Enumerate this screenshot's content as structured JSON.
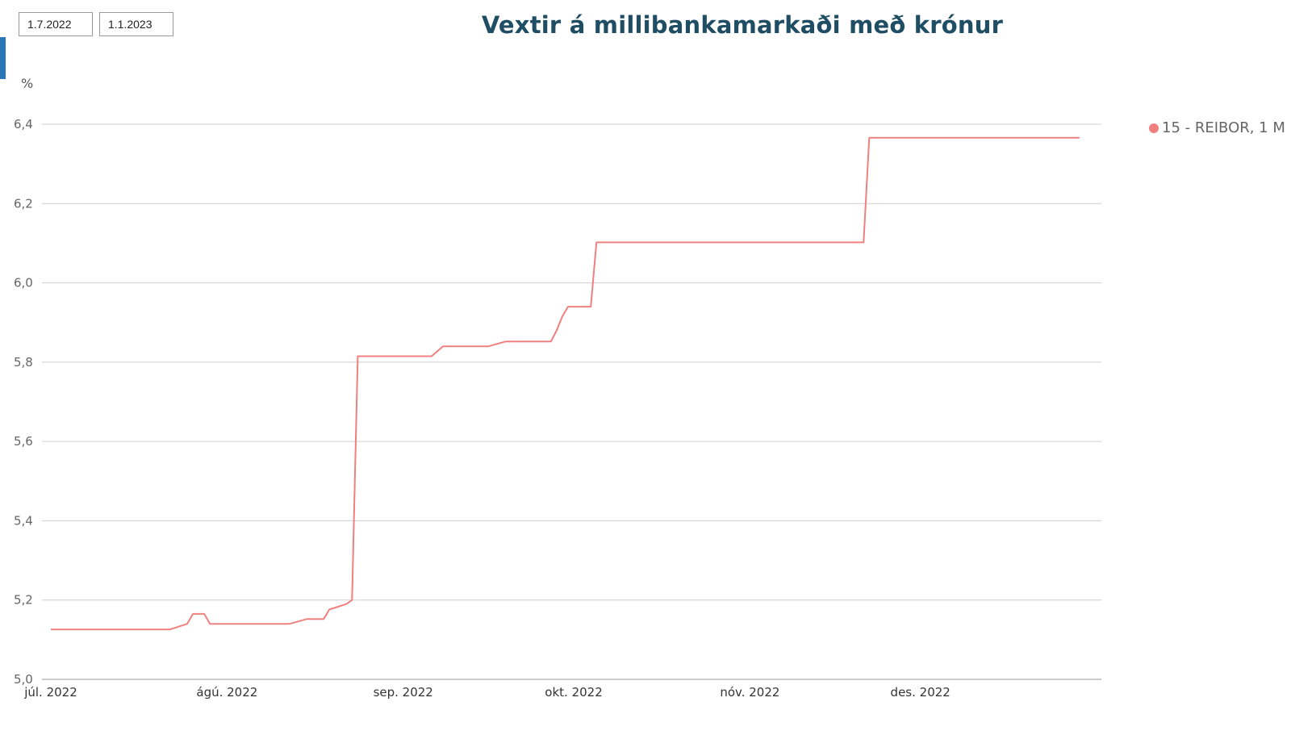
{
  "filters": {
    "date_from": "1.7.2022",
    "date_to": "1.1.2023"
  },
  "colors": {
    "series": "#f08080",
    "title": "#1f4d63",
    "accent_tab": "#2a77b8",
    "grid": "#cfcfcf"
  },
  "chart_data": {
    "type": "line",
    "title": "Vextir á millibankamarkaði með krónur",
    "ylabel": "%",
    "xlabel": "",
    "ylim": [
      5.0,
      6.4
    ],
    "xlim": [
      "2022-07-01",
      "2022-12-31"
    ],
    "yticks": [
      "5,0",
      "5,2",
      "5,4",
      "5,6",
      "5,8",
      "6,0",
      "6,2",
      "6,4"
    ],
    "xticks": [
      {
        "label": "júl. 2022",
        "date": "2022-07-01"
      },
      {
        "label": "ágú. 2022",
        "date": "2022-08-01"
      },
      {
        "label": "sep. 2022",
        "date": "2022-09-01"
      },
      {
        "label": "okt. 2022",
        "date": "2022-10-01"
      },
      {
        "label": "nóv. 2022",
        "date": "2022-11-01"
      },
      {
        "label": "des. 2022",
        "date": "2022-12-01"
      }
    ],
    "grid": true,
    "legend_position": "right",
    "series": [
      {
        "name": "15 - REIBOR, 1 M",
        "color": "#f08080",
        "points": [
          [
            "2022-07-01",
            5.126
          ],
          [
            "2022-07-22",
            5.126
          ],
          [
            "2022-07-25",
            5.14
          ],
          [
            "2022-07-26",
            5.165
          ],
          [
            "2022-07-28",
            5.165
          ],
          [
            "2022-07-29",
            5.14
          ],
          [
            "2022-08-12",
            5.14
          ],
          [
            "2022-08-15",
            5.152
          ],
          [
            "2022-08-18",
            5.152
          ],
          [
            "2022-08-19",
            5.176
          ],
          [
            "2022-08-22",
            5.19
          ],
          [
            "2022-08-23",
            5.2
          ],
          [
            "2022-08-24",
            5.815
          ],
          [
            "2022-09-06",
            5.815
          ],
          [
            "2022-09-08",
            5.84
          ],
          [
            "2022-09-16",
            5.84
          ],
          [
            "2022-09-19",
            5.852
          ],
          [
            "2022-09-27",
            5.852
          ],
          [
            "2022-09-28",
            5.88
          ],
          [
            "2022-09-29",
            5.915
          ],
          [
            "2022-09-30",
            5.94
          ],
          [
            "2022-10-04",
            5.94
          ],
          [
            "2022-10-05",
            6.102
          ],
          [
            "2022-11-21",
            6.102
          ],
          [
            "2022-11-22",
            6.366
          ],
          [
            "2022-12-29",
            6.366
          ]
        ]
      }
    ]
  }
}
